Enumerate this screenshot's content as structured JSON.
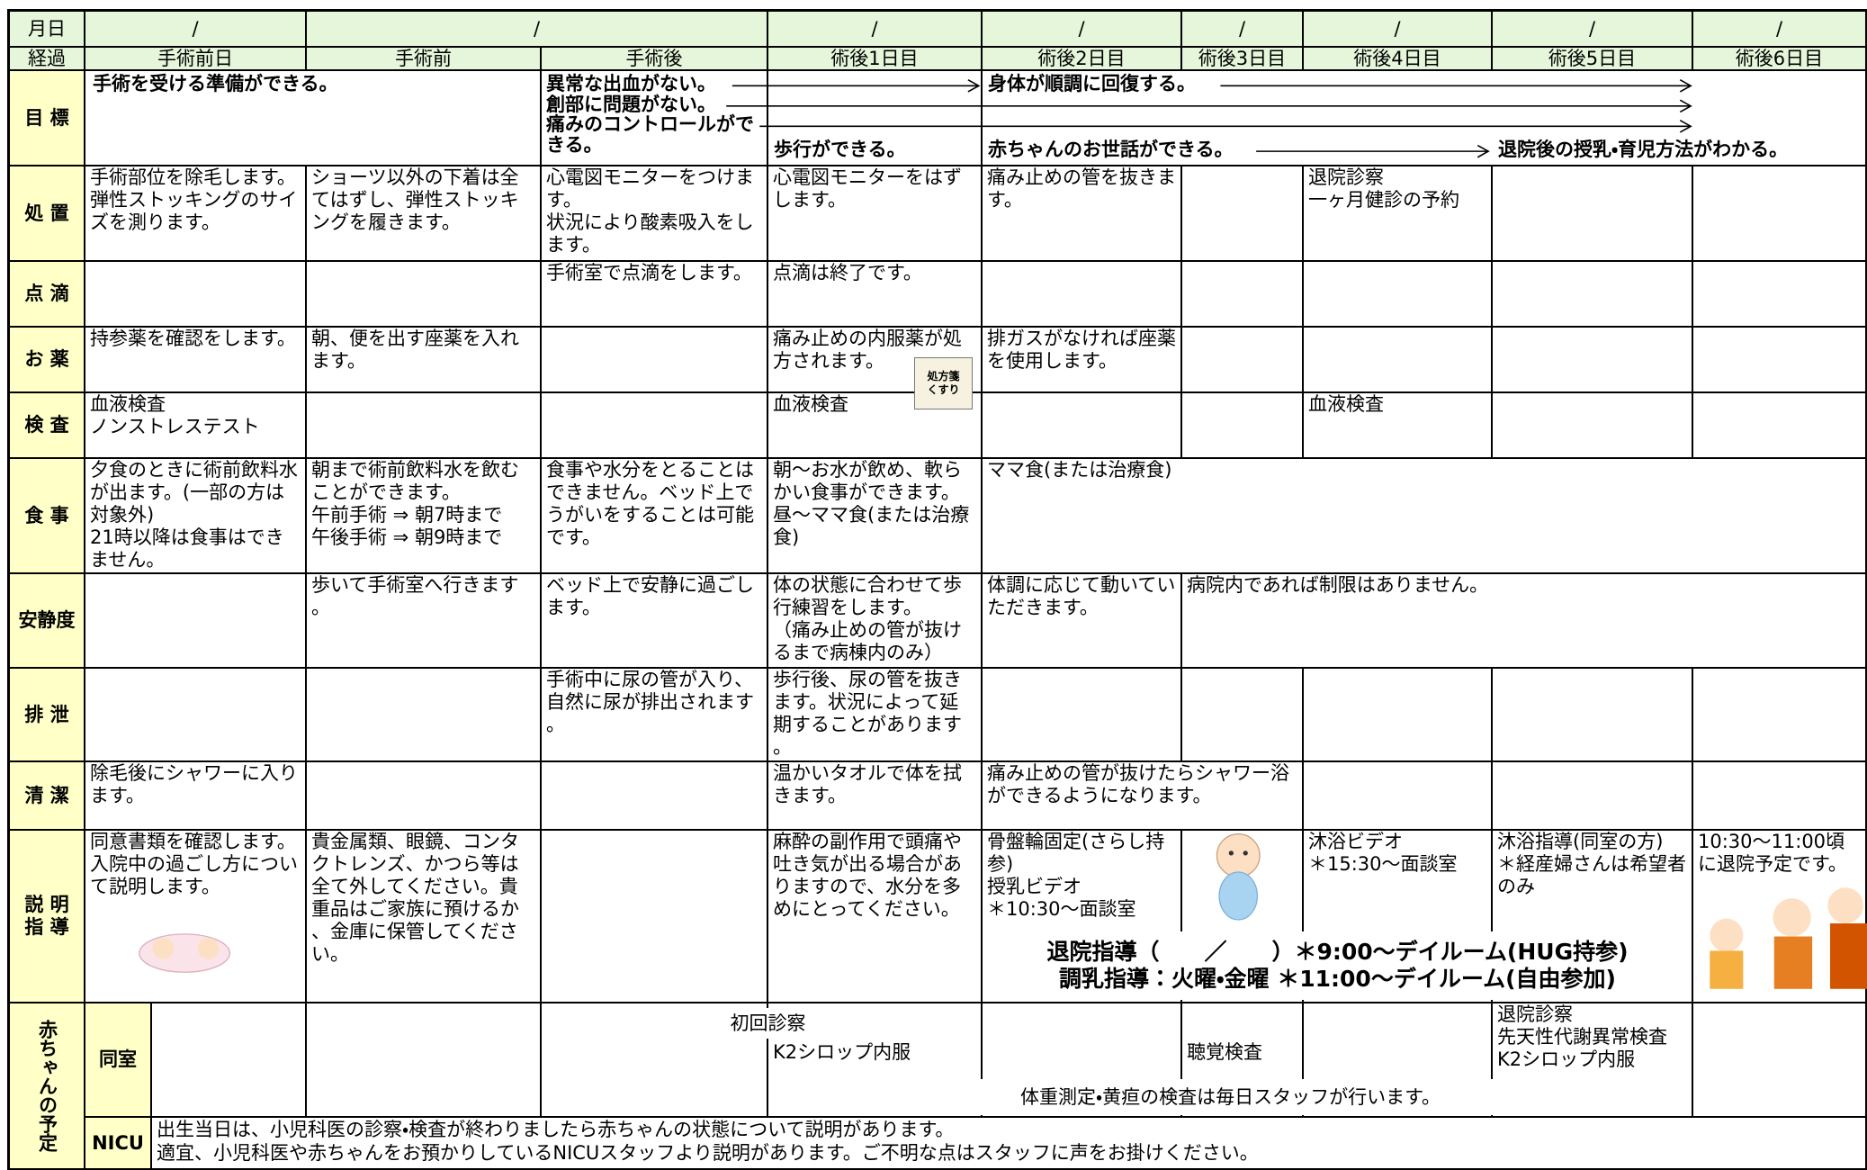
{
  "header": {
    "date_label": "月日",
    "dates": [
      "/",
      "/",
      "/",
      "/",
      "/",
      "/",
      "/",
      "/"
    ],
    "progress_label": "経過",
    "days": [
      "手術前日",
      "手術前",
      "手術後",
      "術後1日目",
      "術後2日目",
      "術後3日目",
      "術後4日目",
      "術後5日目",
      "術後6日目"
    ]
  },
  "goals": {
    "label": "目 標",
    "items": [
      "手術を受ける準備ができる。",
      "異常な出血がない。",
      "創部に問題がない。",
      "痛みのコントロールができる。",
      "歩行ができる。",
      "身体が順調に回復する。",
      "赤ちゃんのお世話ができる。",
      "退院後の授乳・育児方法がわかる。"
    ]
  },
  "rows": [
    {
      "label": "処 置",
      "cells": [
        "手術部位を除毛します。\n弾性ストッキングのサイズを測ります。",
        "ショーツ以外の下着は全てはずし、弾性ストッキングを履きます。",
        "心電図モニターをつけます。\n状況により酸素吸入をします。",
        "心電図モニターをはずします。",
        "痛み止めの管を抜きます。",
        null,
        "退院診察\n一ヶ月健診の予約",
        null,
        null
      ]
    },
    {
      "label": "点 滴",
      "cells": [
        null,
        null,
        "手術室で点滴をします。",
        "点滴は終了です。",
        null,
        null,
        null,
        null,
        null
      ]
    },
    {
      "label": "お 薬",
      "cells": [
        "持参薬を確認をします。",
        "朝、便を出す座薬を入れます。",
        null,
        "痛み止めの内服薬が処方されます。",
        "排ガスがなければ座薬を使用します。",
        null,
        null,
        null,
        null
      ],
      "icon": [
        "処方箋",
        "くすり"
      ]
    },
    {
      "label": "検 査",
      "cells": [
        "血液検査\nノンストレステスト",
        null,
        null,
        "血液検査",
        null,
        null,
        "血液検査",
        null,
        null
      ]
    },
    {
      "label": "食 事",
      "cells": [
        "夕食のときに術前飲料水が出ます。(一部の方は対象外)\n21時以降は食事はできません。",
        "朝まで術前飲料水を飲むことができます。\n午前手術 ⇒ 朝7時まで\n午後手術 ⇒ 朝9時まで",
        "食事や水分をとることはできません。ベッド上でうがいをすることは可能です。",
        "朝～お水が飲め、軟らかい食事ができます。\n昼～ママ食(または治療食)",
        "ママ食(または治療食)"
      ]
    },
    {
      "label": "安静度",
      "cells": [
        null,
        "歩いて手術室へ行きます。",
        "ベッド上で安静に過ごします。",
        "体の状態に合わせて歩行練習をします。\n（痛み止めの管が抜けるまで病棟内のみ）",
        "体調に応じて動いていただきます。",
        "病院内であれば制限はありません。"
      ]
    },
    {
      "label": "排 泄",
      "cells": [
        null,
        null,
        "手術中に尿の管が入り、自然に尿が排出されます。",
        "歩行後、尿の管を抜きます。状況によって延期することがあります。",
        null,
        null,
        null,
        null,
        null
      ]
    },
    {
      "label": "清 潔",
      "cells": [
        "除毛後にシャワーに入ります。",
        null,
        null,
        "温かいタオルで体を拭きます。",
        "痛み止めの管が抜けたらシャワー浴ができるようになります。",
        null,
        null,
        null
      ]
    },
    {
      "label": "説 明\n指 導",
      "cells": [
        "同意書類を確認します。\n入院中の過ごし方について説明します。",
        "貴金属類、眼鏡、コンタクトレンズ、かつら等は全て外してください。貴重品はご家族に預けるか、金庫に保管してください。",
        null,
        "麻酔の副作用で頭痛や吐き気が出る場合がありますので、水分を多めにとってください。",
        "骨盤輪固定(さらし持参)\n授乳ビデオ\n＊10:30～面談室",
        null,
        "沐浴ビデオ\n＊15:30～面談室",
        "沐浴指導(同室の方)\n＊経産婦さんは希望者のみ",
        "10:30～11:00頃に退院予定です。"
      ],
      "notes": [
        "退院指導（　　／　　）＊9:00～デイルーム(HUG持参)",
        "調乳指導：火曜・金曜 ＊11:00～デイルーム(自由参加)"
      ]
    }
  ],
  "baby": {
    "label": "赤ちゃんの予定",
    "rooming_in": {
      "label": "同室",
      "first_exam": "初回診察",
      "cells": [
        null,
        null,
        null,
        "K2シロップ内服",
        null,
        "聴覚検査",
        null,
        "退院診察\n先天性代謝異常検査\nK2シロップ内服",
        null
      ],
      "daily_note": "体重測定・黄疸の検査は毎日スタッフが行います。"
    },
    "nicu": {
      "label": "NICU",
      "lines": [
        "出生当日は、小児科医の診察・検査が終わりましたら赤ちゃんの状態について説明があります。",
        "適宜、小児科医や赤ちゃんをお預かりしているNICUスタッフより説明があります。ご不明な点はスタッフに声をお掛けください。"
      ]
    }
  }
}
